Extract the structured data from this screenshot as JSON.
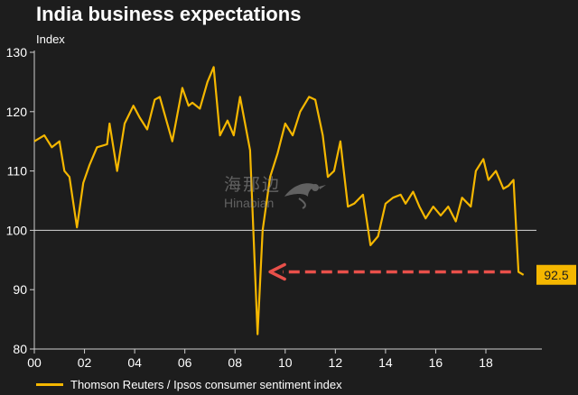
{
  "title": "India business expectations",
  "unit_label": "Index",
  "watermark": {
    "cn": "海那边",
    "en": "Hinabian"
  },
  "colors": {
    "background": "#1d1d1d",
    "line": "#f5b700",
    "reference_line": "#d8d8d8",
    "arrow": "#e8504a",
    "callout_bg": "#f5b700",
    "text": "#ffffff"
  },
  "chart_data": {
    "type": "line",
    "title": "India business expectations",
    "ylabel": "Index",
    "ylim": [
      80,
      130
    ],
    "yticks": [
      80,
      90,
      100,
      110,
      120,
      130
    ],
    "xlim": [
      2000,
      2019.8
    ],
    "xticks": [
      2000,
      2002,
      2004,
      2006,
      2008,
      2010,
      2012,
      2014,
      2016,
      2018
    ],
    "xtick_labels": [
      "00",
      "02",
      "04",
      "06",
      "08",
      "10",
      "12",
      "14",
      "16",
      "18"
    ],
    "reference_line": 100,
    "grid": false,
    "legend_position": "bottom-left",
    "series": [
      {
        "name": "Thomson Reuters / Ipsos consumer sentiment index",
        "x": [
          2000.0,
          2000.4,
          2000.7,
          2001.0,
          2001.2,
          2001.4,
          2001.7,
          2001.95,
          2002.2,
          2002.5,
          2002.9,
          2003.0,
          2003.3,
          2003.6,
          2003.95,
          2004.2,
          2004.5,
          2004.8,
          2005.0,
          2005.3,
          2005.5,
          2005.9,
          2006.15,
          2006.3,
          2006.6,
          2006.9,
          2007.15,
          2007.4,
          2007.7,
          2007.95,
          2008.2,
          2008.6,
          2008.9,
          2009.1,
          2009.4,
          2009.7,
          2010.0,
          2010.3,
          2010.6,
          2010.95,
          2011.2,
          2011.5,
          2011.7,
          2011.95,
          2012.2,
          2012.5,
          2012.75,
          2013.1,
          2013.4,
          2013.7,
          2014.0,
          2014.3,
          2014.6,
          2014.8,
          2015.1,
          2015.35,
          2015.6,
          2015.9,
          2016.2,
          2016.5,
          2016.8,
          2017.05,
          2017.4,
          2017.6,
          2017.9,
          2018.1,
          2018.4,
          2018.7,
          2018.9,
          2019.1,
          2019.3,
          2019.5
        ],
        "y": [
          115,
          116,
          114,
          115,
          110,
          109,
          100.5,
          108,
          111,
          114,
          114.5,
          118,
          110,
          118,
          121,
          119,
          117,
          122,
          122.5,
          118,
          115,
          124,
          121,
          121.5,
          120.5,
          125,
          127.5,
          116,
          118.5,
          116,
          122.5,
          113.5,
          82.5,
          100,
          109,
          113,
          118,
          116,
          120,
          122.5,
          122,
          116,
          109,
          110,
          115,
          104,
          104.5,
          106,
          97.5,
          99,
          104.5,
          105.5,
          106,
          104.5,
          106.5,
          104,
          102,
          104,
          102.5,
          104,
          101.5,
          105.5,
          104,
          110,
          112,
          108.5,
          110,
          107,
          107.5,
          108.5,
          93,
          92.5
        ]
      }
    ],
    "annotations": [
      {
        "type": "callout",
        "text": "92.5",
        "x": 2019.5,
        "y": 92.5
      },
      {
        "type": "arrow",
        "direction": "left",
        "from_x": 2019.0,
        "to_x": 2009.4,
        "y": 93
      }
    ]
  }
}
